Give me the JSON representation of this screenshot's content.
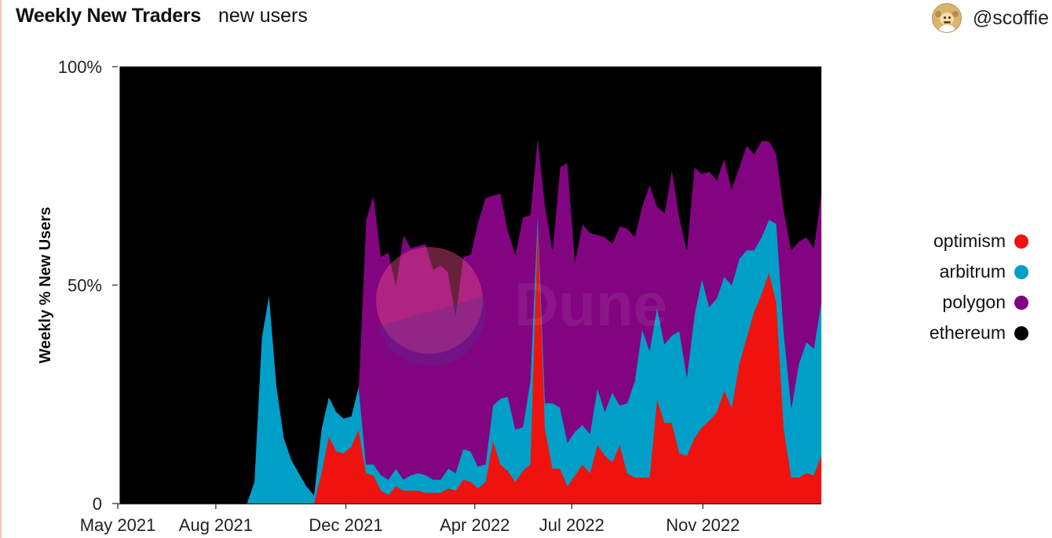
{
  "header": {
    "title": "Weekly New Traders",
    "subtitle": "new users",
    "author": "@scoffie"
  },
  "watermark": "Dune",
  "legend": [
    {
      "name": "optimism",
      "color": "#f0120f"
    },
    {
      "name": "arbitrum",
      "color": "#009fc8"
    },
    {
      "name": "polygon",
      "color": "#820480"
    },
    {
      "name": "ethereum",
      "color": "#000000"
    }
  ],
  "chart_data": {
    "type": "area",
    "stacking": "percent",
    "title": "Weekly New Traders",
    "subtitle": "new users",
    "ylabel": "Weekly % New Users",
    "ylim": [
      0,
      100
    ],
    "y_ticks": [
      {
        "value": 0,
        "label": "0"
      },
      {
        "value": 50,
        "label": "50%"
      },
      {
        "value": 100,
        "label": "100%"
      }
    ],
    "xlim": [
      "2021-05-01",
      "2023-02-20"
    ],
    "x_ticks": [
      {
        "date": "2021-05-01",
        "label": "May 2021"
      },
      {
        "date": "2021-08-01",
        "label": "Aug 2021"
      },
      {
        "date": "2021-12-01",
        "label": "Dec 2021"
      },
      {
        "date": "2022-04-01",
        "label": "Apr 2022"
      },
      {
        "date": "2022-07-01",
        "label": "Jul 2022"
      },
      {
        "date": "2022-11-01",
        "label": "Nov 2022"
      }
    ],
    "x": [
      "2021-05-03",
      "2021-05-10",
      "2021-05-17",
      "2021-05-24",
      "2021-05-31",
      "2021-06-07",
      "2021-06-14",
      "2021-06-21",
      "2021-06-28",
      "2021-07-05",
      "2021-07-12",
      "2021-07-19",
      "2021-07-26",
      "2021-08-02",
      "2021-08-09",
      "2021-08-16",
      "2021-08-23",
      "2021-08-30",
      "2021-09-06",
      "2021-09-13",
      "2021-09-20",
      "2021-09-27",
      "2021-10-04",
      "2021-10-11",
      "2021-10-18",
      "2021-10-25",
      "2021-11-01",
      "2021-11-08",
      "2021-11-15",
      "2021-11-22",
      "2021-11-29",
      "2021-12-06",
      "2021-12-13",
      "2021-12-20",
      "2021-12-27",
      "2022-01-03",
      "2022-01-10",
      "2022-01-17",
      "2022-01-24",
      "2022-01-31",
      "2022-02-07",
      "2022-02-14",
      "2022-02-21",
      "2022-02-28",
      "2022-03-07",
      "2022-03-14",
      "2022-03-21",
      "2022-03-28",
      "2022-04-04",
      "2022-04-11",
      "2022-04-18",
      "2022-04-25",
      "2022-05-02",
      "2022-05-09",
      "2022-05-16",
      "2022-05-23",
      "2022-05-30",
      "2022-06-06",
      "2022-06-13",
      "2022-06-20",
      "2022-06-27",
      "2022-07-04",
      "2022-07-11",
      "2022-07-18",
      "2022-07-25",
      "2022-08-01",
      "2022-08-08",
      "2022-08-15",
      "2022-08-22",
      "2022-08-29",
      "2022-09-05",
      "2022-09-12",
      "2022-09-19",
      "2022-09-26",
      "2022-10-03",
      "2022-10-10",
      "2022-10-17",
      "2022-10-24",
      "2022-10-31",
      "2022-11-07",
      "2022-11-14",
      "2022-11-21",
      "2022-11-28",
      "2022-12-05",
      "2022-12-12",
      "2022-12-19",
      "2022-12-26",
      "2023-01-02",
      "2023-01-09",
      "2023-01-16",
      "2023-01-23",
      "2023-01-30",
      "2023-02-06",
      "2023-02-13",
      "2023-02-20"
    ],
    "series": [
      {
        "name": "optimism",
        "color": "#f0120f",
        "values": [
          0,
          0,
          0,
          0,
          0,
          0,
          0,
          0,
          0,
          0,
          0,
          0,
          0,
          0,
          0,
          0,
          0,
          0,
          0,
          0,
          0,
          0,
          0,
          0,
          0,
          0,
          0,
          7,
          15.5,
          12,
          11.5,
          13,
          17,
          7,
          6.5,
          3,
          2,
          4,
          3,
          3,
          3,
          2.5,
          2.5,
          2.5,
          3.5,
          3,
          5.5,
          5,
          3.5,
          5,
          14.5,
          9,
          7.5,
          5,
          7.5,
          9,
          65,
          17,
          8,
          8,
          4,
          6.5,
          9,
          7,
          13.5,
          11,
          9.5,
          13.5,
          7,
          6,
          6,
          6,
          24,
          18.5,
          18.5,
          11.5,
          11,
          15,
          17.5,
          19,
          21,
          26,
          22,
          32,
          38,
          44,
          48,
          53,
          46,
          17,
          6,
          6,
          7,
          6.5,
          11
        ]
      },
      {
        "name": "arbitrum",
        "color": "#009fc8",
        "values": [
          0,
          0,
          0,
          0,
          0,
          0,
          0,
          0,
          0,
          0,
          0,
          0,
          0,
          0,
          0,
          0,
          0,
          0,
          5,
          38,
          48,
          27,
          15,
          10,
          7,
          4,
          2,
          10,
          9,
          9,
          8,
          7,
          10,
          2,
          2.5,
          3.5,
          3.5,
          4,
          2.5,
          3.5,
          4,
          4,
          3,
          3,
          4.5,
          4,
          7,
          7,
          5,
          4,
          8,
          15,
          17,
          12,
          10,
          19,
          2,
          6,
          15,
          14,
          10,
          10,
          9,
          9,
          13,
          10,
          16,
          9,
          16,
          22,
          34,
          29,
          21,
          18,
          20,
          28,
          18,
          28,
          34,
          26,
          26,
          26,
          28,
          24,
          20,
          14,
          13,
          12,
          18,
          22,
          16,
          26,
          30,
          29,
          35
        ]
      },
      {
        "name": "polygon",
        "color": "#820480",
        "values": [
          0,
          0,
          0,
          0,
          0,
          0,
          0,
          0,
          0,
          0,
          0,
          0,
          0,
          0,
          0,
          0,
          0,
          0,
          0,
          0,
          0,
          0,
          0,
          0,
          0,
          0,
          0,
          0,
          0,
          0,
          0,
          0,
          0,
          56,
          62,
          50,
          52,
          42,
          56,
          52,
          52,
          53,
          48,
          49,
          45,
          36,
          44,
          45,
          56,
          61,
          48,
          47,
          38,
          40,
          48,
          38,
          17,
          45,
          35,
          55,
          64,
          39,
          46,
          46,
          35,
          40,
          34,
          41,
          40,
          33,
          28,
          38,
          23,
          30,
          38,
          26,
          29,
          34,
          24,
          31,
          27,
          27,
          22,
          21,
          24,
          22,
          22,
          18,
          16,
          28,
          36,
          28,
          24,
          23,
          25
        ]
      },
      {
        "name": "ethereum",
        "color": "#000000",
        "values": [
          100,
          100,
          100,
          100,
          100,
          100,
          100,
          100,
          100,
          100,
          100,
          100,
          100,
          100,
          100,
          100,
          100,
          100,
          95,
          62,
          52,
          73,
          85,
          90,
          93,
          96,
          98,
          83,
          75.5,
          79,
          80.5,
          80,
          73,
          35,
          29.5,
          43.5,
          42.5,
          50,
          38.5,
          41.5,
          41,
          40.5,
          46.5,
          45.5,
          47,
          57,
          43.5,
          43,
          35.5,
          30,
          29.5,
          29,
          37.5,
          43,
          34.5,
          34,
          16,
          32,
          42,
          23,
          22,
          44.5,
          36,
          38,
          38.5,
          39,
          40.5,
          36.5,
          37,
          39,
          32,
          27,
          32,
          33.5,
          23.5,
          34.5,
          42,
          23,
          24.5,
          24,
          26,
          21,
          28,
          23,
          18,
          20,
          17,
          17,
          20,
          33,
          42,
          40,
          39,
          41.5,
          29
        ]
      }
    ]
  }
}
